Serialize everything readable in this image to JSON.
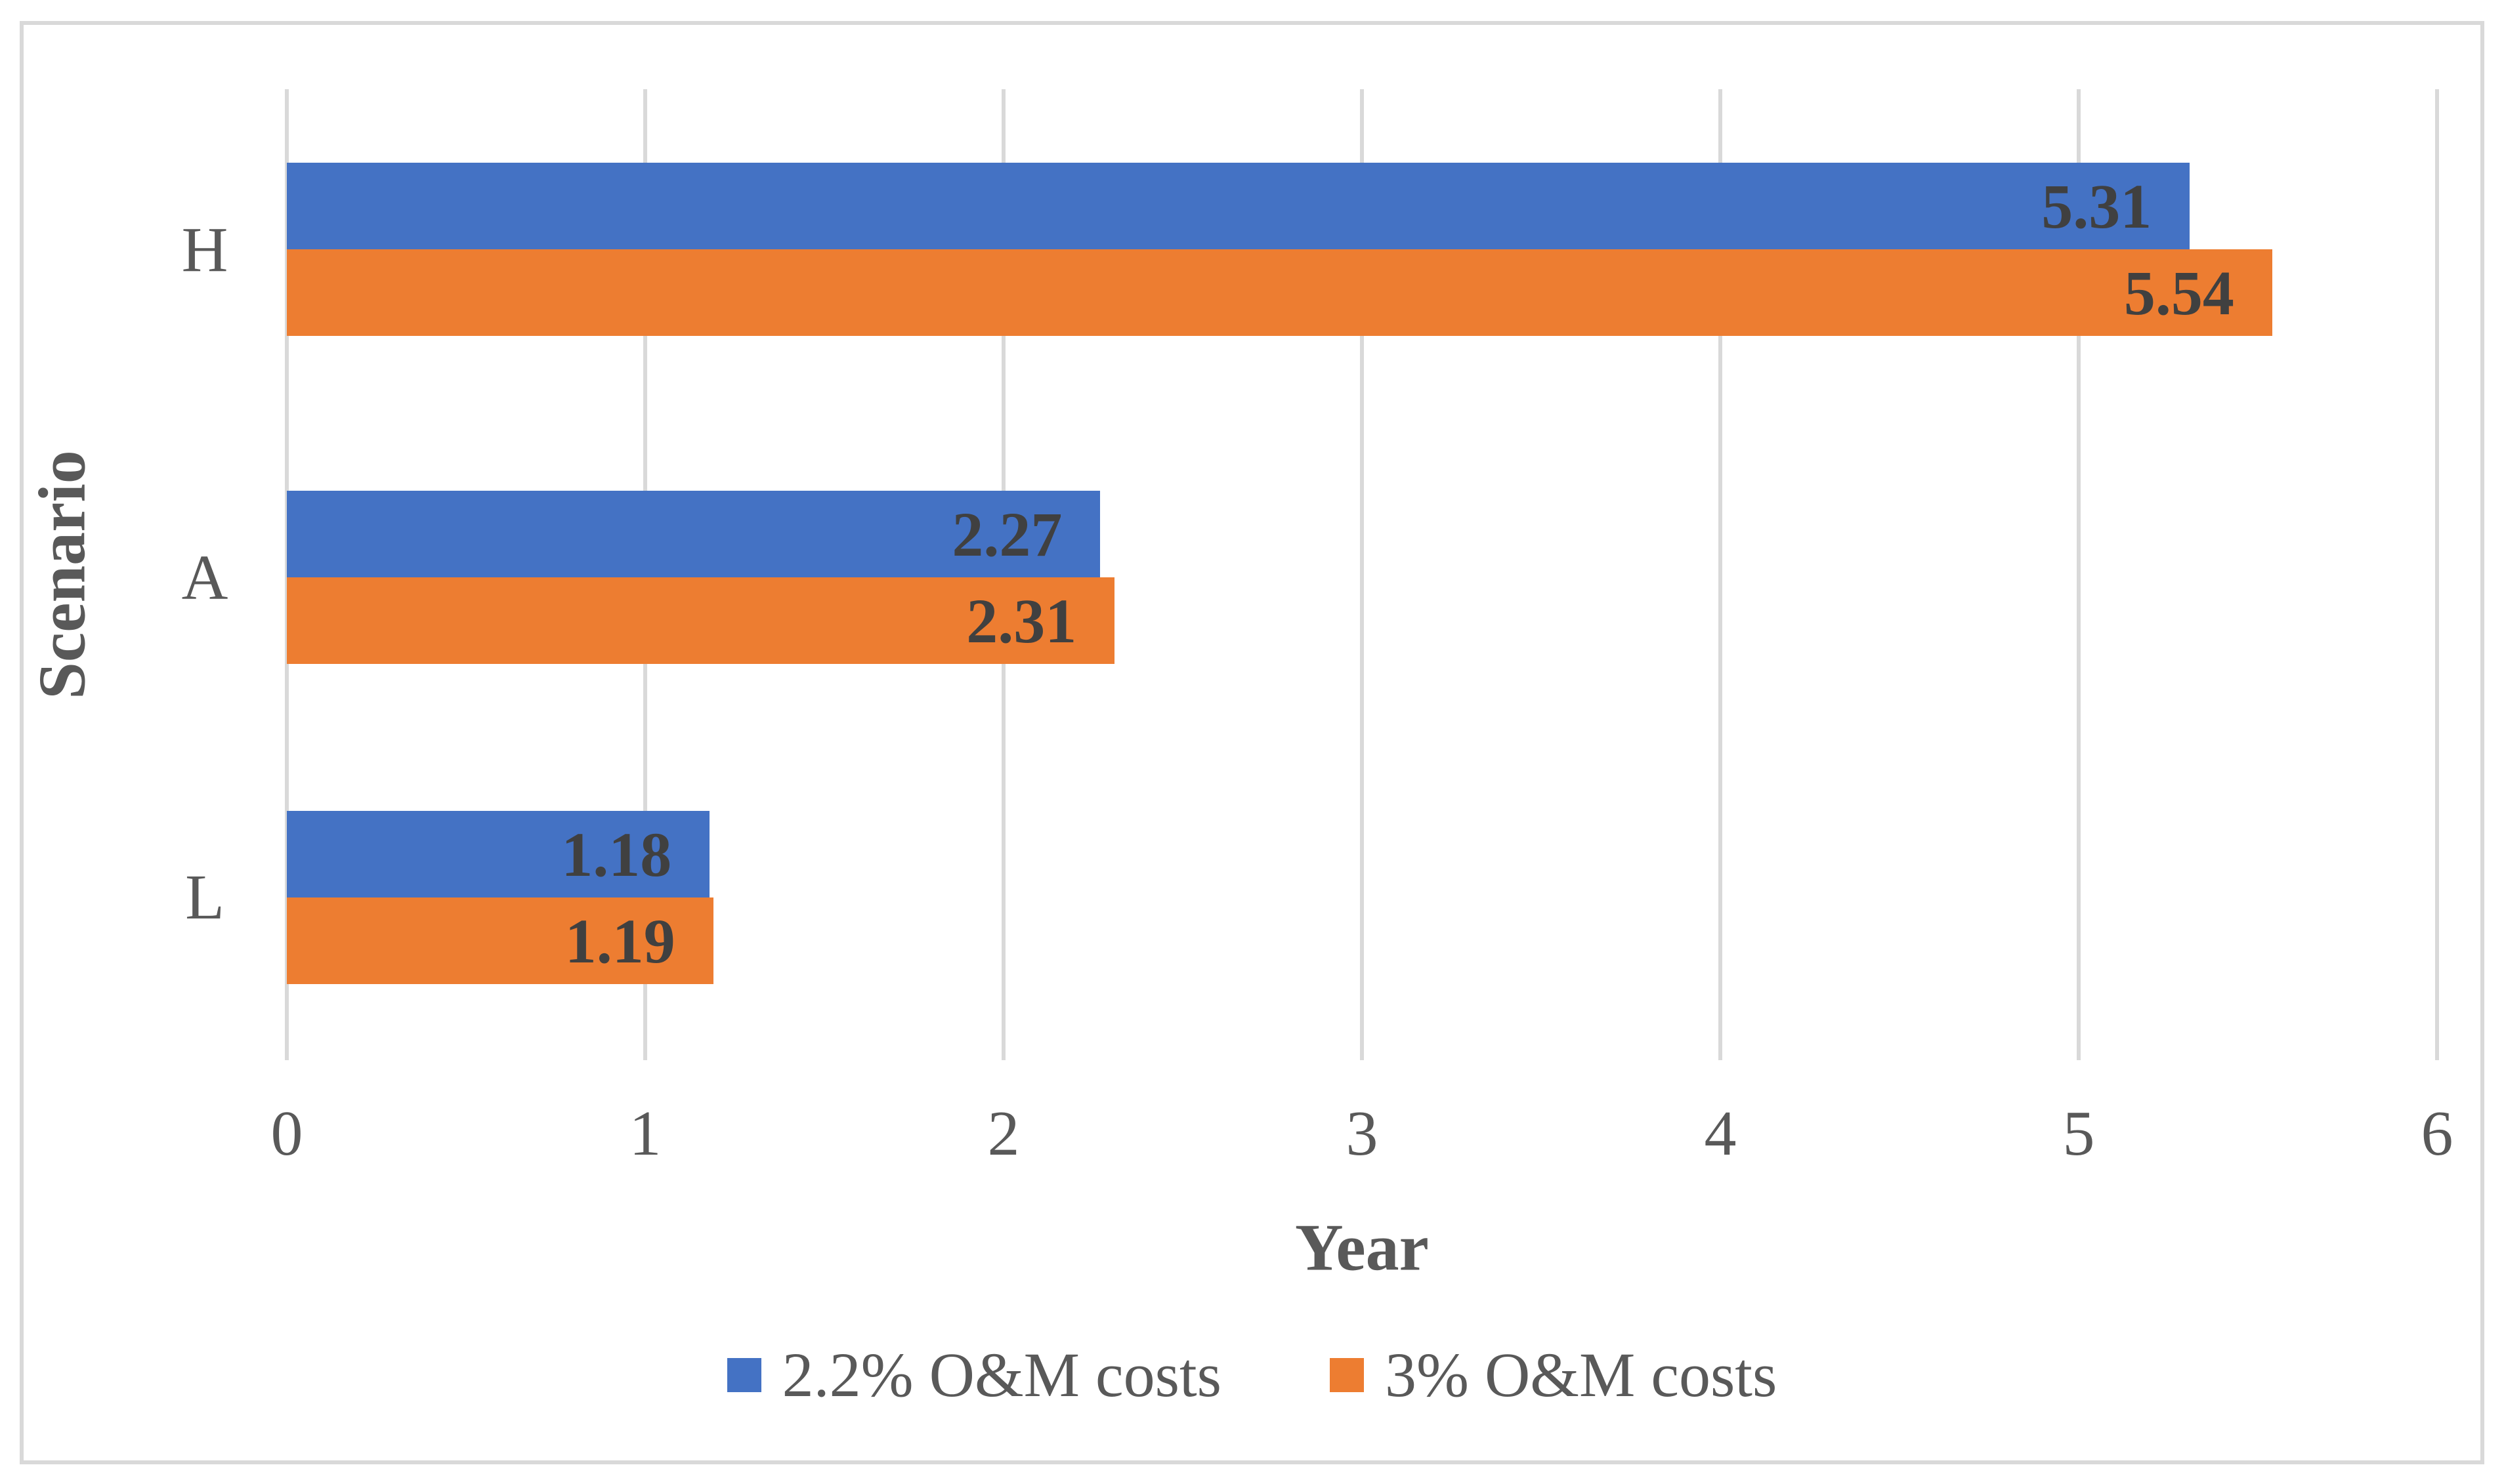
{
  "chart_data": {
    "type": "bar",
    "orientation": "horizontal",
    "categories": [
      "H",
      "A",
      "L"
    ],
    "series": [
      {
        "name": "2.2% O&M costs",
        "color": "#4472C4",
        "values": [
          5.31,
          2.27,
          1.18
        ],
        "data_labels": [
          "5.31",
          "2.27",
          "1.18"
        ]
      },
      {
        "name": "3% O&M costs",
        "color": "#ED7D31",
        "values": [
          5.54,
          2.31,
          1.19
        ],
        "data_labels": [
          "5.54",
          "2.31",
          "1.19"
        ]
      }
    ],
    "xlabel": "Year",
    "ylabel": "Scenario",
    "xlim": [
      0,
      6
    ],
    "x_ticks": [
      "0",
      "1",
      "2",
      "3",
      "4",
      "5",
      "6"
    ],
    "grid": "vertical gridlines on",
    "legend_position": "bottom",
    "data_label_position": "inside-end"
  },
  "colors": {
    "series_1": "#4472C4",
    "series_2": "#ED7D31",
    "gridline": "#D9D9D9",
    "frame_border": "#D9D9D9",
    "tick_text": "#595959",
    "axis_title_text": "#595959",
    "data_label_text": "#404040",
    "background": "#FFFFFF"
  }
}
